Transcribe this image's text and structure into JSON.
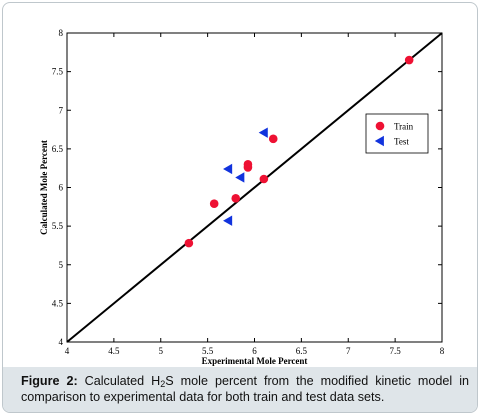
{
  "chart_data": {
    "type": "scatter",
    "xlabel": "Experimental Mole Percent",
    "ylabel": "Calculated Mole Percent",
    "xlim": [
      4,
      8
    ],
    "ylim": [
      4,
      8
    ],
    "xticks": [
      "4",
      "4.5",
      "5",
      "5.5",
      "6",
      "6.5",
      "7",
      "7.5",
      "8"
    ],
    "yticks": [
      "4",
      "4.5",
      "5",
      "5.5",
      "6",
      "6.5",
      "7",
      "7.5",
      "8"
    ],
    "grid": false,
    "legend": "top-right",
    "reference_line": {
      "x": [
        4,
        8
      ],
      "y": [
        4,
        8
      ],
      "color": "#000000"
    },
    "series": [
      {
        "name": "Train",
        "marker": "circle",
        "color": "#ee1133",
        "points": [
          [
            5.3,
            5.28
          ],
          [
            5.57,
            5.79
          ],
          [
            5.8,
            5.86
          ],
          [
            5.93,
            6.26
          ],
          [
            5.93,
            6.3
          ],
          [
            6.1,
            6.11
          ],
          [
            6.2,
            6.63
          ],
          [
            7.65,
            7.65
          ]
        ]
      },
      {
        "name": "Test",
        "marker": "triangle-left",
        "color": "#1133dd",
        "points": [
          [
            5.72,
            5.57
          ],
          [
            5.72,
            6.24
          ],
          [
            5.85,
            6.13
          ],
          [
            6.1,
            6.71
          ]
        ]
      }
    ]
  },
  "caption": {
    "label": "Figure 2:",
    "text_before_sub": " Calculated H",
    "subscript": "2",
    "text_after_sub": "S mole percent from the modified kinetic model in comparison to experimental data for both train and test data sets."
  }
}
